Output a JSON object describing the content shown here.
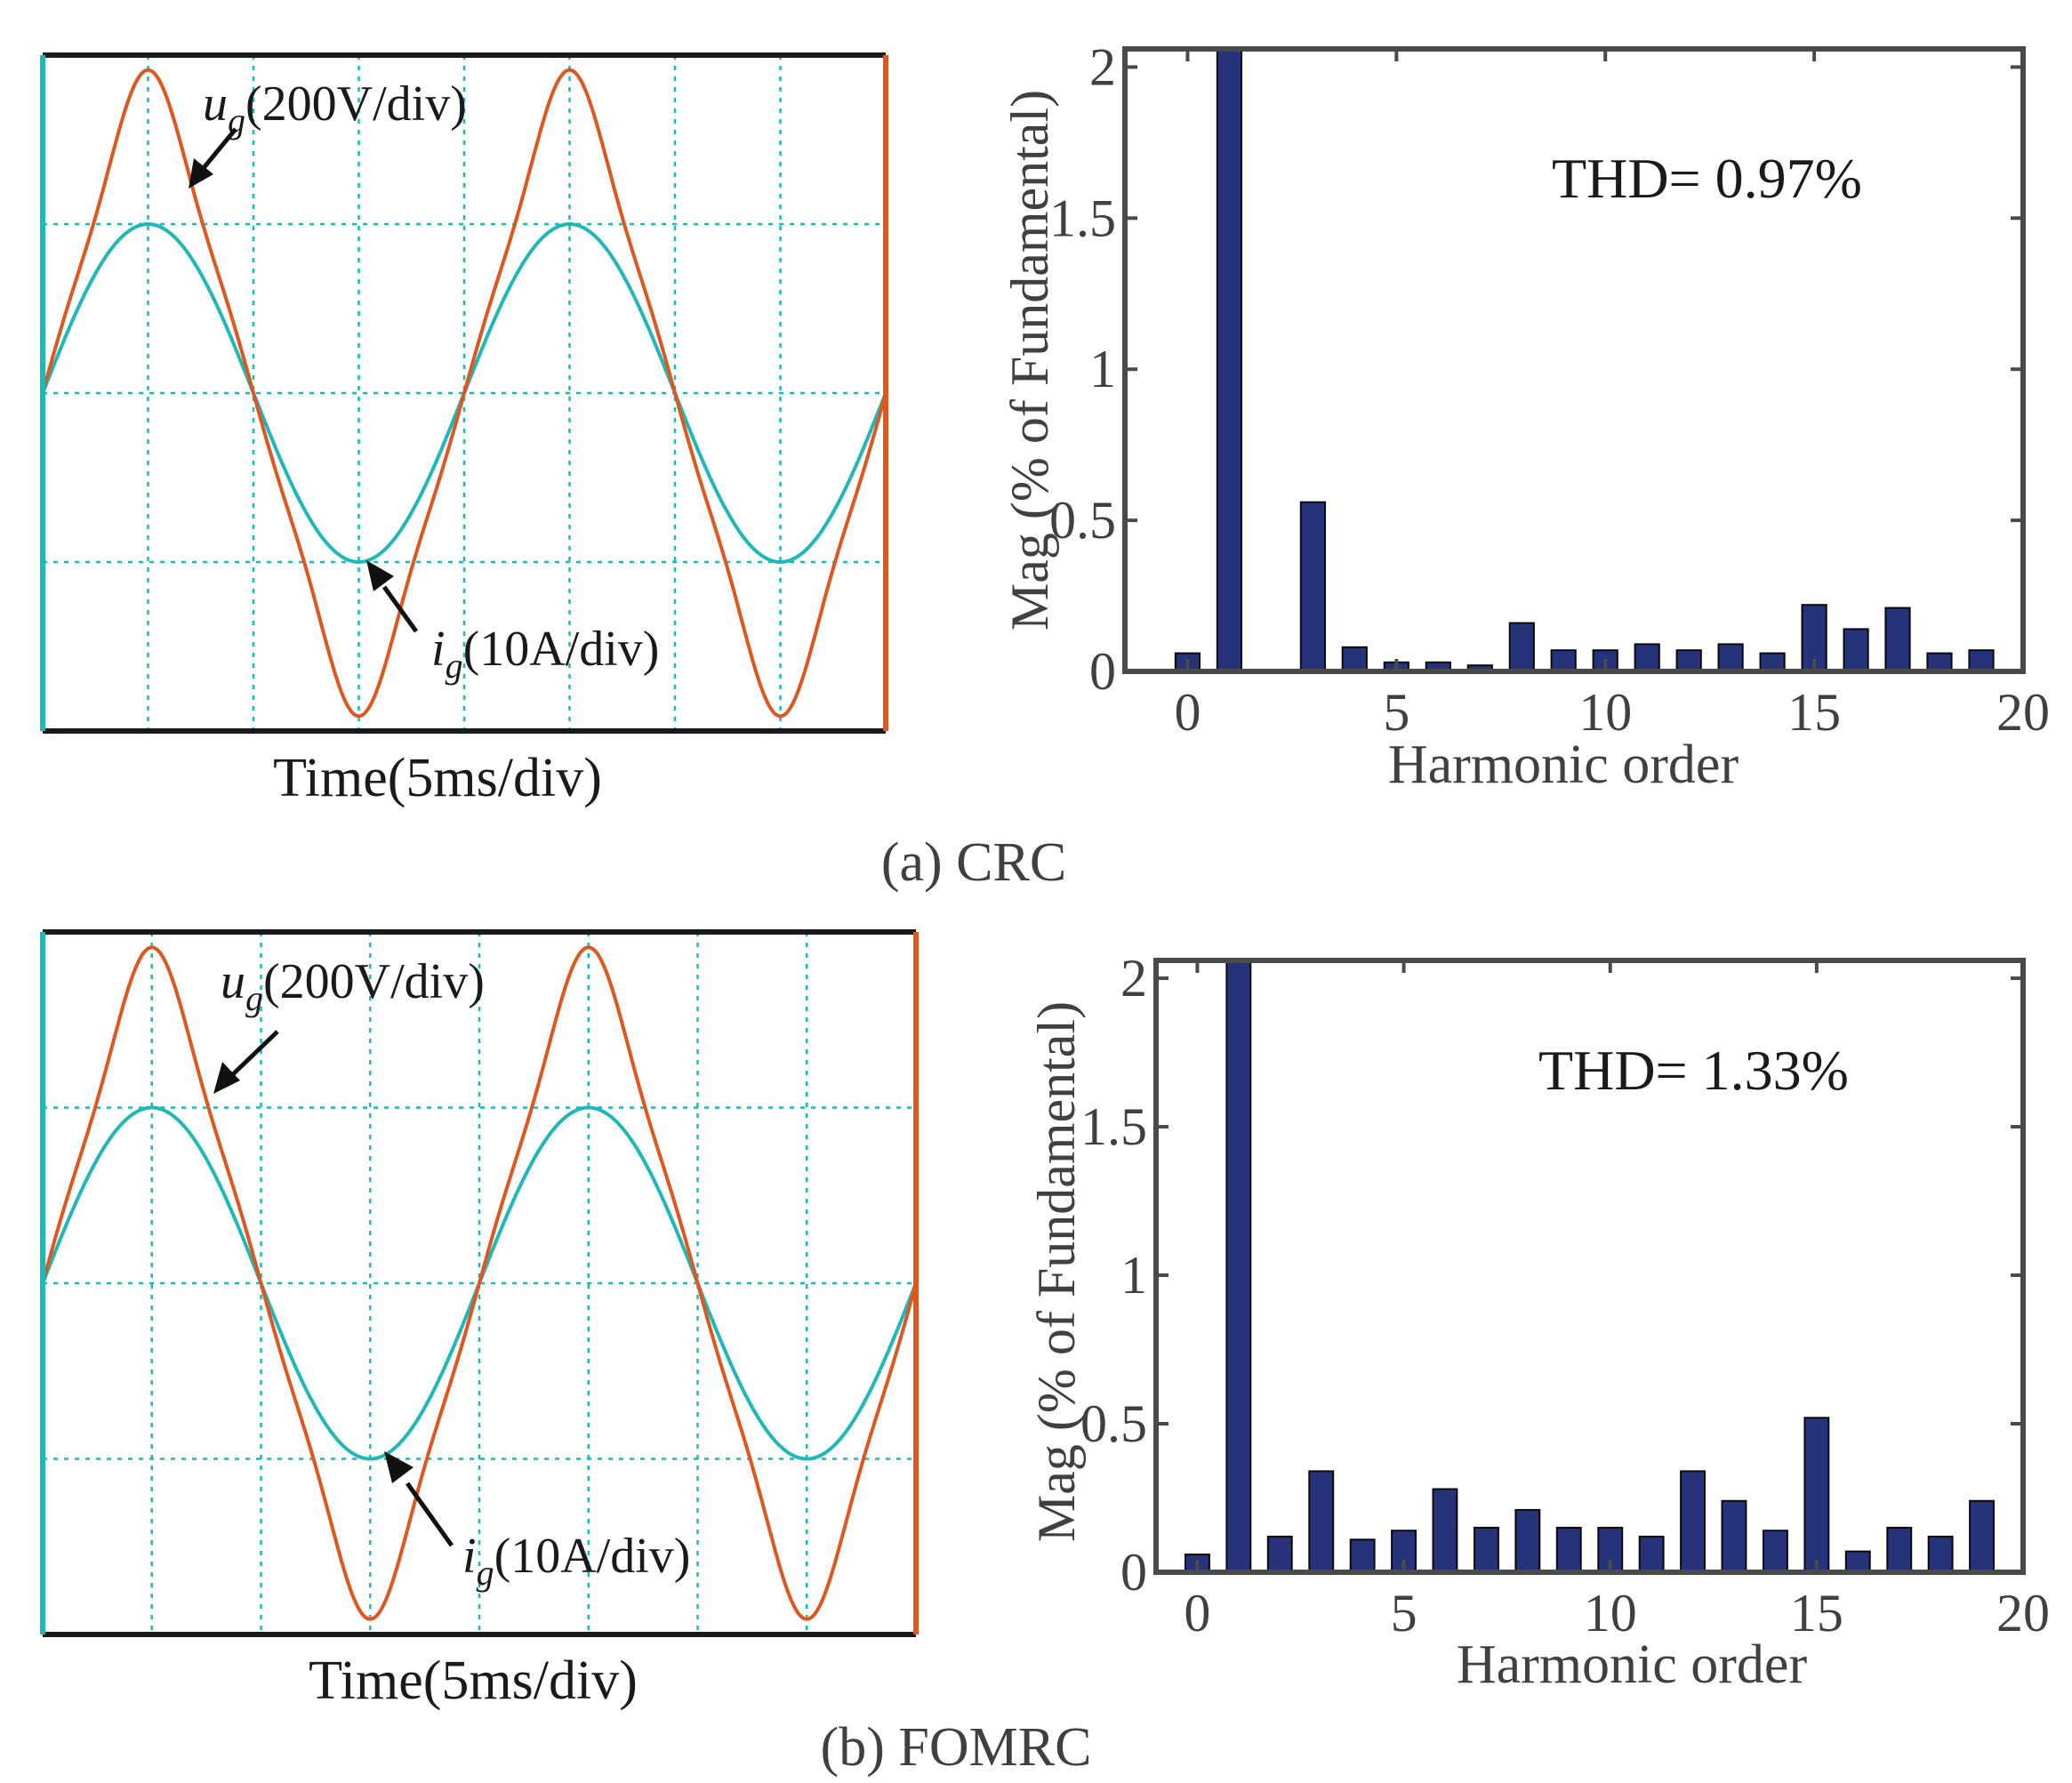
{
  "figure": {
    "panels": [
      {
        "caption": "(a) CRC",
        "waveform": {
          "voltage_label_main": "u",
          "voltage_label_sub": "g",
          "voltage_label_unit": "(200V/div)",
          "current_label_main": "i",
          "current_label_sub": "g",
          "current_label_unit": "(10A/div)",
          "xlabel": "Time(5ms/div)",
          "colors": {
            "voltage": "#e0561f",
            "current": "#1fb8b8",
            "grid": "#1fb8b8"
          }
        },
        "thd_text": "THD= 0.97%"
      },
      {
        "caption": "(b) FOMRC",
        "waveform": {
          "voltage_label_main": "u",
          "voltage_label_sub": "g",
          "voltage_label_unit": "(200V/div)",
          "current_label_main": "i",
          "current_label_sub": "g",
          "current_label_unit": "(10A/div)",
          "xlabel": "Time(5ms/div)",
          "colors": {
            "voltage": "#e0561f",
            "current": "#1fb8b8",
            "grid": "#1fb8b8"
          }
        },
        "thd_text": "THD= 1.33%"
      }
    ]
  },
  "chart_data": [
    {
      "type": "bar",
      "title": "",
      "xlabel": "Harmonic order",
      "ylabel": "Mag (% of Fundamental)",
      "x": [
        0,
        1,
        2,
        3,
        4,
        5,
        6,
        7,
        8,
        9,
        10,
        11,
        12,
        13,
        14,
        15,
        16,
        17,
        18,
        19
      ],
      "values": [
        0.06,
        2.06,
        0,
        0.56,
        0.08,
        0.03,
        0.03,
        0.02,
        0.16,
        0.07,
        0.07,
        0.09,
        0.07,
        0.09,
        0.06,
        0.22,
        0.14,
        0.21,
        0.06,
        0.07
      ],
      "xlim": [
        -1.5,
        20
      ],
      "ylim": [
        0,
        2.06
      ],
      "xticks": [
        0,
        5,
        10,
        15,
        20
      ],
      "yticks": [
        0,
        0.5,
        1,
        1.5,
        2
      ],
      "ytick_labels": [
        "0",
        "0.5",
        "1",
        "1.5",
        "2"
      ],
      "bar_color": "#26337a",
      "annotation": "THD= 0.97%"
    },
    {
      "type": "bar",
      "title": "",
      "xlabel": "Harmonic order",
      "ylabel": "Mag (% of Fundamental)",
      "x": [
        0,
        1,
        2,
        3,
        4,
        5,
        6,
        7,
        8,
        9,
        10,
        11,
        12,
        13,
        14,
        15,
        16,
        17,
        18,
        19
      ],
      "values": [
        0.06,
        2.06,
        0.12,
        0.34,
        0.11,
        0.14,
        0.28,
        0.15,
        0.21,
        0.15,
        0.15,
        0.12,
        0.34,
        0.24,
        0.14,
        0.52,
        0.07,
        0.15,
        0.12,
        0.24
      ],
      "xlim": [
        -1,
        20
      ],
      "ylim": [
        0,
        2.06
      ],
      "xticks": [
        0,
        5,
        10,
        15,
        20
      ],
      "yticks": [
        0,
        0.5,
        1,
        1.5,
        2
      ],
      "ytick_labels": [
        "0",
        "0.5",
        "1",
        "1.5",
        "2"
      ],
      "bar_color": "#26337a",
      "annotation": "THD= 1.33%"
    }
  ]
}
